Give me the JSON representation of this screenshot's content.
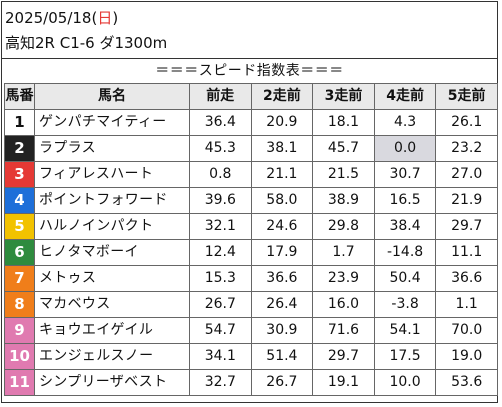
{
  "race": {
    "date": "2025/05/18",
    "dow_open": "(",
    "dow": "日",
    "dow_close": ")",
    "info": "高知2R C1-6 ダ1300m"
  },
  "section_title": "＝＝＝スピード指数表＝＝＝",
  "columns": [
    "馬番",
    "馬名",
    "前走",
    "2走前",
    "3走前",
    "4走前",
    "5走前"
  ],
  "colors": {
    "dow": "#e53935",
    "highlight_cell": "#d9d9df",
    "gate": [
      "#ffffff",
      "#222222",
      "#e53935",
      "#1e6fd9",
      "#f2c200",
      "#2e8b3e",
      "#f07e1a",
      "#f07e1a",
      "#e07ab0",
      "#e07ab0",
      "#e07ab0"
    ]
  },
  "rows": [
    {
      "no": "1",
      "name": "ゲンパチマイティー",
      "v": [
        "36.4",
        "20.9",
        "18.1",
        "4.3",
        "26.1"
      ],
      "hl": -1
    },
    {
      "no": "2",
      "name": "ラプラス",
      "v": [
        "45.3",
        "38.1",
        "45.7",
        "0.0",
        "23.2"
      ],
      "hl": 3
    },
    {
      "no": "3",
      "name": "フィアレスハート",
      "v": [
        "0.8",
        "21.1",
        "21.5",
        "30.7",
        "27.0"
      ],
      "hl": -1
    },
    {
      "no": "4",
      "name": "ポイントフォワード",
      "v": [
        "39.6",
        "58.0",
        "38.9",
        "16.5",
        "21.9"
      ],
      "hl": -1
    },
    {
      "no": "5",
      "name": "ハルノインパクト",
      "v": [
        "32.1",
        "24.6",
        "29.8",
        "38.4",
        "29.7"
      ],
      "hl": -1
    },
    {
      "no": "6",
      "name": "ヒノタマボーイ",
      "v": [
        "12.4",
        "17.9",
        "1.7",
        "-14.8",
        "11.1"
      ],
      "hl": -1
    },
    {
      "no": "7",
      "name": "メトゥス",
      "v": [
        "15.3",
        "36.6",
        "23.9",
        "50.4",
        "36.6"
      ],
      "hl": -1
    },
    {
      "no": "8",
      "name": "マカベウス",
      "v": [
        "26.7",
        "26.4",
        "16.0",
        "-3.8",
        "1.1"
      ],
      "hl": -1
    },
    {
      "no": "9",
      "name": "キョウエイゲイル",
      "v": [
        "54.7",
        "30.9",
        "71.6",
        "54.1",
        "70.0"
      ],
      "hl": -1
    },
    {
      "no": "10",
      "name": "エンジェルスノー",
      "v": [
        "34.1",
        "51.4",
        "29.7",
        "17.5",
        "19.0"
      ],
      "hl": -1
    },
    {
      "no": "11",
      "name": "シンプリーザベスト",
      "v": [
        "32.7",
        "26.7",
        "19.1",
        "10.0",
        "53.6"
      ],
      "hl": -1
    }
  ]
}
